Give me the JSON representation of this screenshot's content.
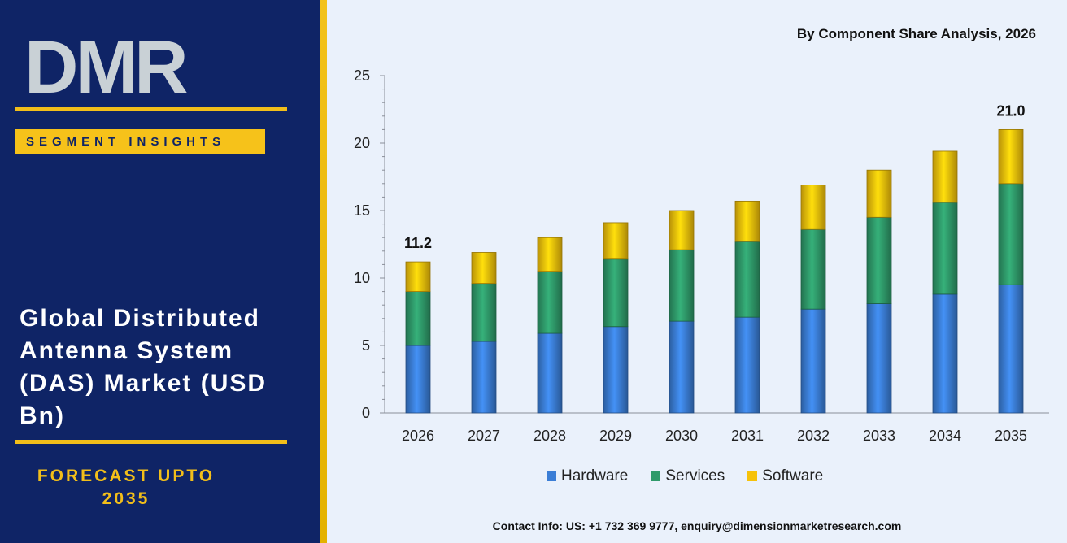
{
  "brand": {
    "logo_text": "DMR",
    "segment_label": "SEGMENT INSIGHTS",
    "title": "Global Distributed Antenna System (DAS) Market (USD Bn)",
    "forecast_label": "FORECAST UPTO 2035",
    "colors": {
      "navy": "#0f2466",
      "gold": "#f2be1a",
      "logo_red": "#ea3b3b",
      "logo_grey": "#c9d1d6"
    }
  },
  "footer": {
    "contact": "Contact Info: US: +1 732 369 9777, enquiry@dimensionmarketresearch.com"
  },
  "chart_data": {
    "type": "bar",
    "stacked": true,
    "title": "By Component Share Analysis, 2026",
    "xlabel": "",
    "ylabel": "",
    "categories": [
      "2026",
      "2027",
      "2028",
      "2029",
      "2030",
      "2031",
      "2032",
      "2033",
      "2034",
      "2035"
    ],
    "series": [
      {
        "name": "Hardware",
        "color": "#3b7ed6",
        "values": [
          5.0,
          5.3,
          5.9,
          6.4,
          6.8,
          7.1,
          7.7,
          8.1,
          8.8,
          9.5
        ]
      },
      {
        "name": "Services",
        "color": "#2f9a6a",
        "values": [
          4.0,
          4.3,
          4.6,
          5.0,
          5.3,
          5.6,
          5.9,
          6.4,
          6.8,
          7.5
        ]
      },
      {
        "name": "Software",
        "color": "#f6c20a",
        "values": [
          2.2,
          2.3,
          2.5,
          2.7,
          2.9,
          3.0,
          3.3,
          3.5,
          3.8,
          4.0
        ]
      }
    ],
    "data_labels": [
      {
        "category": "2026",
        "text": "11.2"
      },
      {
        "category": "2035",
        "text": "21.0"
      }
    ],
    "yticks": [
      0,
      5,
      10,
      15,
      20,
      25
    ],
    "ylim": [
      0,
      25
    ],
    "grid": false,
    "legend_position": "bottom"
  }
}
